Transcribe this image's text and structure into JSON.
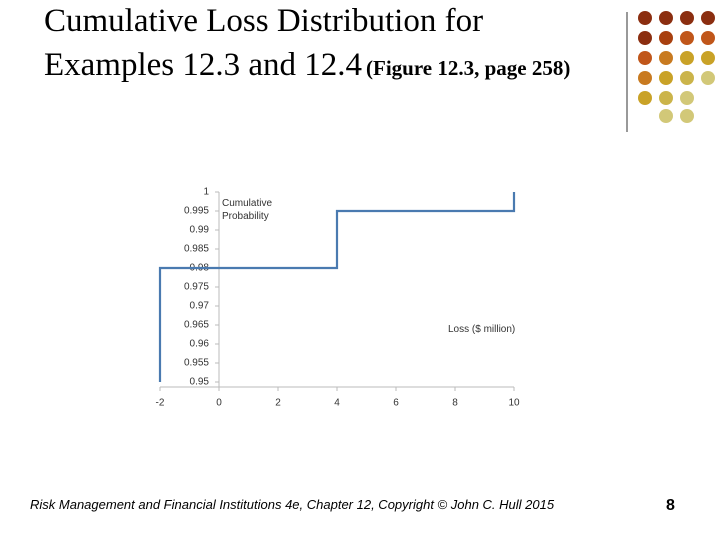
{
  "chart_data": {
    "type": "line",
    "title": "Cumulative Loss Distribution for Examples 12.3 and 12.4",
    "subtitle": "(Figure 12.3, page 258)",
    "xlabel": "Loss ($ million)",
    "ylabel": "Cumulative Probability",
    "x": [
      -2,
      -2,
      4,
      4,
      10,
      10
    ],
    "values": [
      0.95,
      0.98,
      0.98,
      0.995,
      0.995,
      1
    ],
    "color": "#4a7ab0",
    "xlim": [
      -2,
      10
    ],
    "xticks": [
      -2,
      0,
      2,
      4,
      6,
      8,
      10
    ],
    "ylim": [
      0.95,
      1
    ],
    "yticks": [
      0.95,
      0.955,
      0.96,
      0.965,
      0.97,
      0.975,
      0.98,
      0.985,
      0.99,
      0.995,
      1
    ]
  },
  "footer": "Risk Management and Financial Institutions 4e, Chapter 12, Copyright © John C. Hull 2015",
  "page_number": 8
}
